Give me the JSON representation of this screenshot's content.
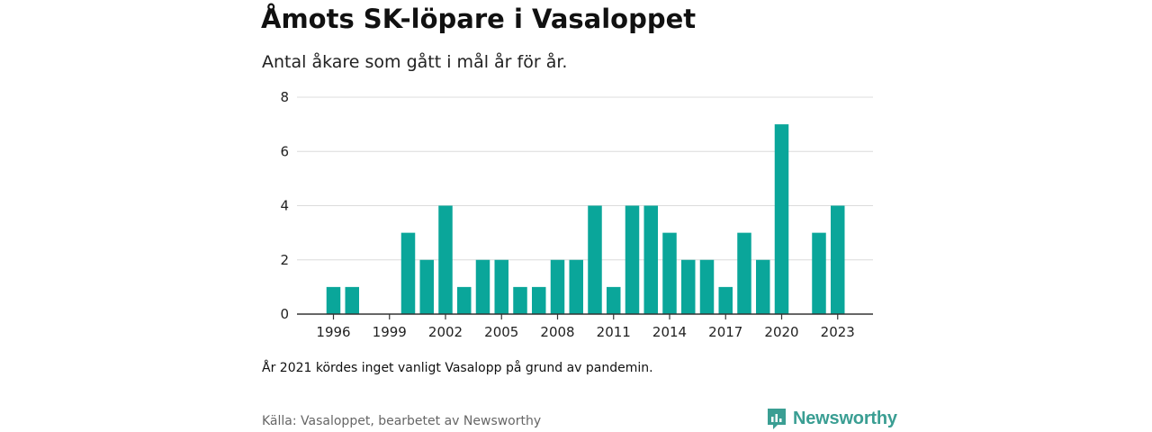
{
  "header": {
    "title": "Åmots SK-löpare i Vasaloppet",
    "subtitle": "Antal åkare som gått i mål år för år."
  },
  "footer": {
    "note": "År 2021 kördes inget vanligt Vasalopp på grund av pandemin.",
    "source": "Källa: Vasaloppet, bearbetet av Newsworthy",
    "brand": "Newsworthy"
  },
  "colors": {
    "bar": "#0aa69a",
    "grid": "#dcdcdc",
    "axis": "#333333",
    "brand": "#3a9e93"
  },
  "chart_data": {
    "type": "bar",
    "title": "Åmots SK-löpare i Vasaloppet",
    "subtitle": "Antal åkare som gått i mål år för år.",
    "categories": [
      1996,
      1997,
      1998,
      1999,
      2000,
      2001,
      2002,
      2003,
      2004,
      2005,
      2006,
      2007,
      2008,
      2009,
      2010,
      2011,
      2012,
      2013,
      2014,
      2015,
      2016,
      2017,
      2018,
      2019,
      2020,
      2021,
      2022,
      2023
    ],
    "values": [
      1,
      1,
      0,
      0,
      3,
      2,
      4,
      1,
      2,
      2,
      1,
      1,
      2,
      2,
      4,
      1,
      4,
      4,
      3,
      2,
      2,
      1,
      3,
      2,
      7,
      0,
      3,
      4
    ],
    "x_tick_labels": [
      "1996",
      "1999",
      "2002",
      "2005",
      "2008",
      "2011",
      "2014",
      "2017",
      "2020",
      "2023"
    ],
    "y_ticks": [
      "0",
      "2",
      "4",
      "6",
      "8"
    ],
    "ylim": [
      0,
      8
    ],
    "grid": true,
    "xlabel": "",
    "ylabel": ""
  }
}
